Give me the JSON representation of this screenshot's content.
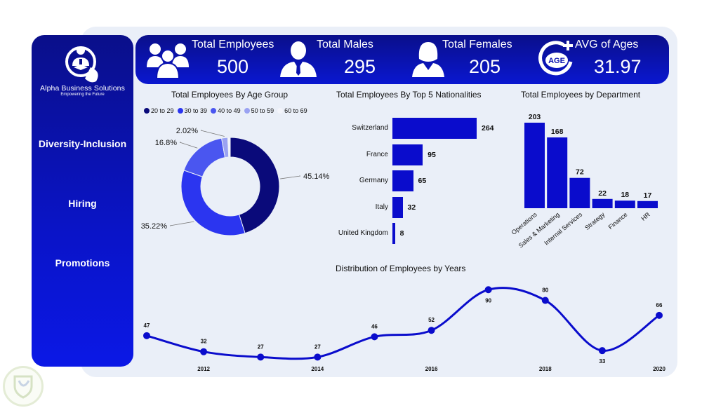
{
  "brand": {
    "name": "Alpha Business Solutions",
    "tagline": "Empowering the Future"
  },
  "sidebar": {
    "items": [
      {
        "label": "Diversity-Inclusion"
      },
      {
        "label": "Hiring"
      },
      {
        "label": "Promotions"
      }
    ]
  },
  "kpis": [
    {
      "label": "Total Employees",
      "value": "500",
      "icon": "group-icon"
    },
    {
      "label": "Total Males",
      "value": "295",
      "icon": "male-icon"
    },
    {
      "label": "Total Females",
      "value": "205",
      "icon": "female-icon"
    },
    {
      "label": "AVG of Ages",
      "value": "31.97",
      "icon": "age-icon"
    }
  ],
  "colors": {
    "primary": "#0a12c8",
    "dark": "#0a0f8a",
    "panel": "#eaeff8"
  },
  "chart_data": [
    {
      "type": "pie",
      "title": "Total Employees By Age Group",
      "legend_position": "top",
      "categories": [
        "20 to 29",
        "30 to 39",
        "40 to 49",
        "50 to 59",
        "60 to 69"
      ],
      "values": [
        45.14,
        35.22,
        16.8,
        2.02,
        0.82
      ],
      "labels": [
        "45.14%",
        "35.22%",
        "16.8%",
        "2.02%",
        ""
      ],
      "colors": [
        "#0a0a7a",
        "#2b35f0",
        "#4a56f0",
        "#9aa2f2",
        "#f4f5fb"
      ]
    },
    {
      "type": "bar",
      "orientation": "horizontal",
      "title": "Total Employees By Top 5 Nationalities",
      "categories": [
        "Switzerland",
        "France",
        "Germany",
        "Italy",
        "United Kingdom"
      ],
      "values": [
        264,
        95,
        65,
        32,
        8
      ]
    },
    {
      "type": "bar",
      "title": "Total Employees by Department",
      "categories": [
        "Operations",
        "Sales & Marketing",
        "Internal Services",
        "Strategy",
        "Finance",
        "HR"
      ],
      "values": [
        203,
        168,
        72,
        22,
        18,
        17
      ]
    },
    {
      "type": "line",
      "title": "Distribution of Employees by Years",
      "x": [
        2011,
        2012,
        2013,
        2014,
        2015,
        2016,
        2017,
        2018,
        2019,
        2020
      ],
      "values": [
        47,
        32,
        27,
        27,
        46,
        52,
        90,
        80,
        33,
        66
      ],
      "tick_labels": [
        "2012",
        "2014",
        "2016",
        "2018",
        "2020"
      ]
    }
  ]
}
